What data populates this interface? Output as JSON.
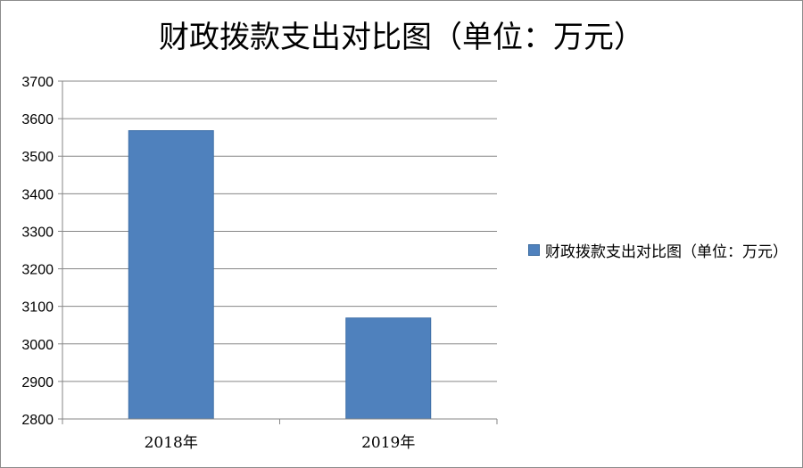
{
  "chart_data": {
    "type": "bar",
    "title": "财政拨款支出对比图（单位：万元）",
    "categories": [
      "2018年",
      "2019年"
    ],
    "series": [
      {
        "name": "财政拨款支出对比图（单位：万元）",
        "values": [
          3568,
          3069
        ],
        "color": "#4f81bd"
      }
    ],
    "ylim": [
      2800,
      3700
    ],
    "yticks": [
      2800,
      2900,
      3000,
      3100,
      3200,
      3300,
      3400,
      3500,
      3600,
      3700
    ],
    "grid": true,
    "legend_position": "right",
    "xlabel": "",
    "ylabel": ""
  }
}
